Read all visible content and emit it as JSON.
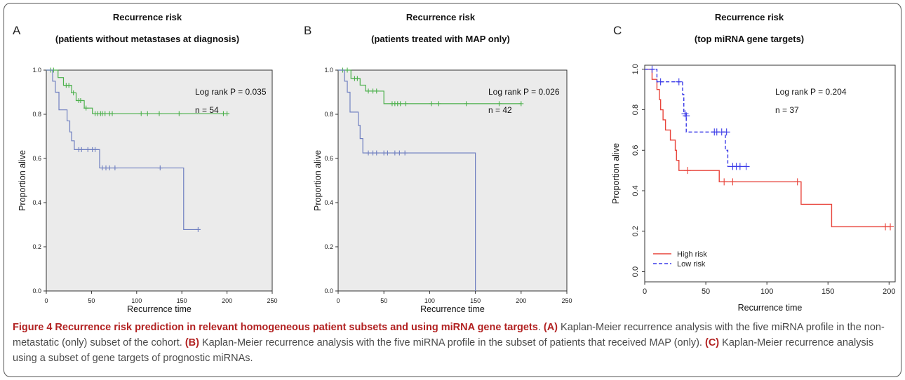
{
  "panels": [
    {
      "letter": "A",
      "title": "Recurrence risk",
      "subtitle": "(patients without metastases at diagnosis)",
      "annotation_p": "Log rank P = 0.035",
      "annotation_n": "n = 54"
    },
    {
      "letter": "B",
      "title": "Recurrence risk",
      "subtitle": "(patients treated with MAP only)",
      "annotation_p": "Log rank P = 0.026",
      "annotation_n": "n = 42"
    },
    {
      "letter": "C",
      "title": "Recurrence risk",
      "subtitle": "(top miRNA gene targets)",
      "annotation_p": "Log rank P = 0.204",
      "annotation_n": "n = 37"
    }
  ],
  "caption": {
    "title": "Figure 4 Recurrence risk prediction in relevant homogeneous patient subsets and using miRNA gene targets",
    "a_label": "(A)",
    "a_text": " Kaplan-Meier recurrence analysis with the five miRNA profile in the non-metastatic (only) subset of the cohort. ",
    "b_label": "(B)",
    "b_text": " Kaplan-Meier recurrence analysis with the five miRNA profile in the subset of patients that received MAP (only). ",
    "c_label": "(C)",
    "c_text": " Kaplan-Meier recurrence analysis using a subset of gene targets of prognostic miRNAs."
  },
  "chart_data": [
    {
      "type": "line",
      "title": "Recurrence risk",
      "subtitle": "(patients without metastases at diagnosis)",
      "xlabel": "Recurrence time",
      "ylabel": "Proportion alive",
      "xlim": [
        0,
        250
      ],
      "ylim": [
        0,
        1
      ],
      "xticks": [
        0,
        50,
        100,
        150,
        200,
        250
      ],
      "yticks": [
        0.0,
        0.2,
        0.4,
        0.6,
        0.8,
        1.0
      ],
      "tick_format": 1,
      "background": "#ebebeb",
      "grid": false,
      "series": [
        {
          "color": "#4bb04b",
          "dashed": false,
          "steps": [
            [
              0,
              1.0
            ],
            [
              13,
              0.966
            ],
            [
              19,
              0.931
            ],
            [
              28,
              0.897
            ],
            [
              33,
              0.862
            ],
            [
              42,
              0.828
            ],
            [
              51,
              0.803
            ],
            [
              200,
              0.803
            ]
          ],
          "censors": [
            [
              5,
              1.0
            ],
            [
              8,
              1.0
            ],
            [
              22,
              0.931
            ],
            [
              25,
              0.931
            ],
            [
              30,
              0.897
            ],
            [
              36,
              0.862
            ],
            [
              38,
              0.862
            ],
            [
              44,
              0.828
            ],
            [
              54,
              0.803
            ],
            [
              57,
              0.803
            ],
            [
              60,
              0.803
            ],
            [
              62,
              0.803
            ],
            [
              65,
              0.803
            ],
            [
              70,
              0.803
            ],
            [
              73,
              0.803
            ],
            [
              105,
              0.803
            ],
            [
              112,
              0.803
            ],
            [
              125,
              0.803
            ],
            [
              147,
              0.803
            ],
            [
              196,
              0.803
            ],
            [
              200,
              0.803
            ]
          ]
        },
        {
          "color": "#6f7fc0",
          "dashed": false,
          "steps": [
            [
              0,
              1.0
            ],
            [
              7,
              0.95
            ],
            [
              10,
              0.9
            ],
            [
              14,
              0.82
            ],
            [
              23,
              0.77
            ],
            [
              26,
              0.72
            ],
            [
              28,
              0.68
            ],
            [
              31,
              0.64
            ],
            [
              59,
              0.557
            ],
            [
              152,
              0.278
            ],
            [
              168,
              0.278
            ]
          ],
          "censors": [
            [
              36,
              0.64
            ],
            [
              39,
              0.64
            ],
            [
              46,
              0.64
            ],
            [
              51,
              0.64
            ],
            [
              54,
              0.64
            ],
            [
              62,
              0.557
            ],
            [
              66,
              0.557
            ],
            [
              70,
              0.557
            ],
            [
              76,
              0.557
            ],
            [
              126,
              0.557
            ],
            [
              168,
              0.278
            ]
          ]
        }
      ]
    },
    {
      "type": "line",
      "title": "Recurrence risk",
      "subtitle": "(patients treated with MAP only)",
      "xlabel": "Recurrence time",
      "ylabel": "Proportion alive",
      "xlim": [
        0,
        250
      ],
      "ylim": [
        0,
        1
      ],
      "xticks": [
        0,
        50,
        100,
        150,
        200,
        250
      ],
      "yticks": [
        0.0,
        0.2,
        0.4,
        0.6,
        0.8,
        1.0
      ],
      "tick_format": 1,
      "background": "#ebebeb",
      "grid": false,
      "series": [
        {
          "color": "#4bb04b",
          "dashed": false,
          "steps": [
            [
              0,
              1.0
            ],
            [
              14,
              0.962
            ],
            [
              24,
              0.932
            ],
            [
              30,
              0.905
            ],
            [
              50,
              0.848
            ],
            [
              200,
              0.848
            ]
          ],
          "censors": [
            [
              5,
              1.0
            ],
            [
              10,
              1.0
            ],
            [
              18,
              0.962
            ],
            [
              21,
              0.962
            ],
            [
              33,
              0.905
            ],
            [
              38,
              0.905
            ],
            [
              42,
              0.905
            ],
            [
              59,
              0.848
            ],
            [
              62,
              0.848
            ],
            [
              65,
              0.848
            ],
            [
              68,
              0.848
            ],
            [
              74,
              0.848
            ],
            [
              102,
              0.848
            ],
            [
              110,
              0.848
            ],
            [
              140,
              0.848
            ],
            [
              176,
              0.848
            ],
            [
              200,
              0.848
            ]
          ]
        },
        {
          "color": "#6f7fc0",
          "dashed": false,
          "steps": [
            [
              0,
              1.0
            ],
            [
              7,
              0.95
            ],
            [
              10,
              0.9
            ],
            [
              13,
              0.81
            ],
            [
              22,
              0.75
            ],
            [
              24,
              0.69
            ],
            [
              27,
              0.625
            ],
            [
              150,
              0.625
            ],
            [
              150,
              0.0
            ]
          ],
          "censors": [
            [
              33,
              0.625
            ],
            [
              38,
              0.625
            ],
            [
              42,
              0.625
            ],
            [
              50,
              0.625
            ],
            [
              54,
              0.625
            ],
            [
              62,
              0.625
            ],
            [
              67,
              0.625
            ],
            [
              73,
              0.625
            ]
          ]
        }
      ]
    },
    {
      "type": "line",
      "title": "Recurrence risk",
      "subtitle": "(top miRNA gene targets)",
      "xlabel": "Recurrence time",
      "ylabel": "Proportion alive",
      "xlim": [
        0,
        205
      ],
      "ylim": [
        -0.05,
        1.02
      ],
      "xticks": [
        0,
        50,
        100,
        150,
        200
      ],
      "yticks": [
        0.0,
        0.2,
        0.4,
        0.6,
        0.8,
        1.0
      ],
      "tick_format": 1,
      "background": "#ffffff",
      "grid": false,
      "legend": "bottom-left",
      "series": [
        {
          "name": "High risk",
          "color": "#e8453c",
          "dashed": false,
          "steps": [
            [
              0,
              1.0
            ],
            [
              6,
              0.95
            ],
            [
              10,
              0.9
            ],
            [
              12,
              0.85
            ],
            [
              13,
              0.8
            ],
            [
              15,
              0.75
            ],
            [
              17,
              0.7
            ],
            [
              21,
              0.65
            ],
            [
              25,
              0.6
            ],
            [
              26,
              0.55
            ],
            [
              28,
              0.5
            ],
            [
              60,
              0.5
            ],
            [
              61,
              0.444
            ],
            [
              127,
              0.444
            ],
            [
              128,
              0.333
            ],
            [
              152,
              0.333
            ],
            [
              153,
              0.222
            ],
            [
              201,
              0.222
            ]
          ],
          "censors": [
            [
              35,
              0.5
            ],
            [
              65,
              0.444
            ],
            [
              72,
              0.444
            ],
            [
              125,
              0.444
            ],
            [
              197,
              0.222
            ],
            [
              201,
              0.222
            ]
          ]
        },
        {
          "name": "Low risk",
          "color": "#3a3ae8",
          "dashed": true,
          "steps": [
            [
              0,
              1.0
            ],
            [
              10,
              0.938
            ],
            [
              30,
              0.938
            ],
            [
              31,
              0.875
            ],
            [
              32,
              0.78
            ],
            [
              34,
              0.69
            ],
            [
              64,
              0.69
            ],
            [
              66,
              0.6
            ],
            [
              68,
              0.52
            ],
            [
              83,
              0.52
            ]
          ],
          "censors": [
            [
              6,
              1.0
            ],
            [
              13,
              0.938
            ],
            [
              28,
              0.938
            ],
            [
              33,
              0.78
            ],
            [
              34,
              0.77
            ],
            [
              57,
              0.69
            ],
            [
              59,
              0.69
            ],
            [
              63,
              0.69
            ],
            [
              67,
              0.69
            ],
            [
              72,
              0.52
            ],
            [
              75,
              0.52
            ],
            [
              78,
              0.52
            ],
            [
              83,
              0.52
            ]
          ]
        }
      ]
    }
  ]
}
